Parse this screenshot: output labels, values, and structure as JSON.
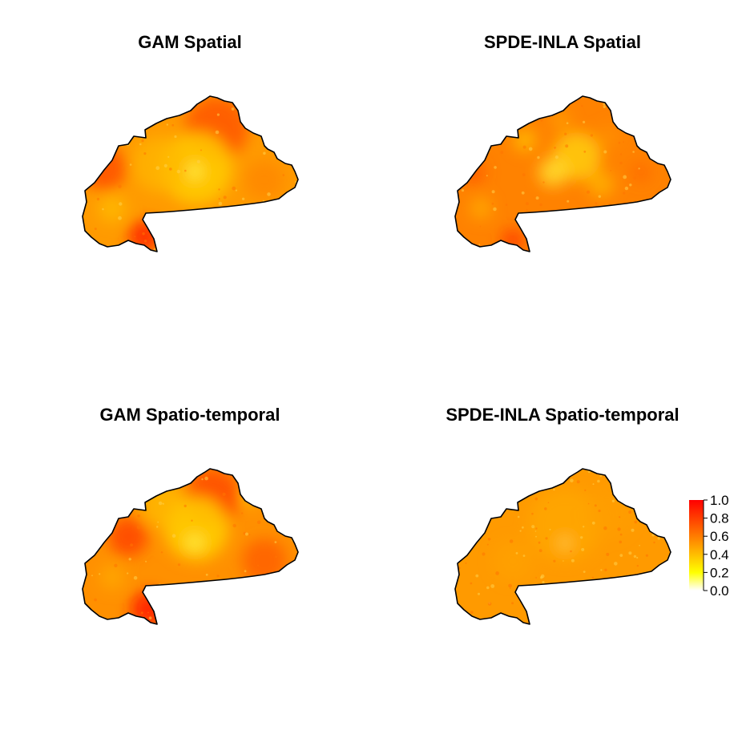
{
  "panels": [
    {
      "id": "gam-spatial",
      "title": "GAM Spatial",
      "pattern": "gam_spatial"
    },
    {
      "id": "spde-inla-spatial",
      "title": "SPDE-INLA Spatial",
      "pattern": "spde_spatial"
    },
    {
      "id": "gam-spatio-temporal",
      "title": "GAM Spatio-temporal",
      "pattern": "gam_temporal"
    },
    {
      "id": "spde-inla-spatio-temporal",
      "title": "SPDE-INLA Spatio-temporal",
      "pattern": "spde_temporal"
    }
  ],
  "legend": {
    "labels": [
      "1.0",
      "0.8",
      "0.6",
      "0.4",
      "0.2",
      "0.0"
    ],
    "min": 0.0,
    "max": 1.0,
    "colors": {
      "low": "#ffffff",
      "yellow": "#ffff00",
      "orange": "#ff8c00",
      "high": "#ff0000"
    }
  }
}
